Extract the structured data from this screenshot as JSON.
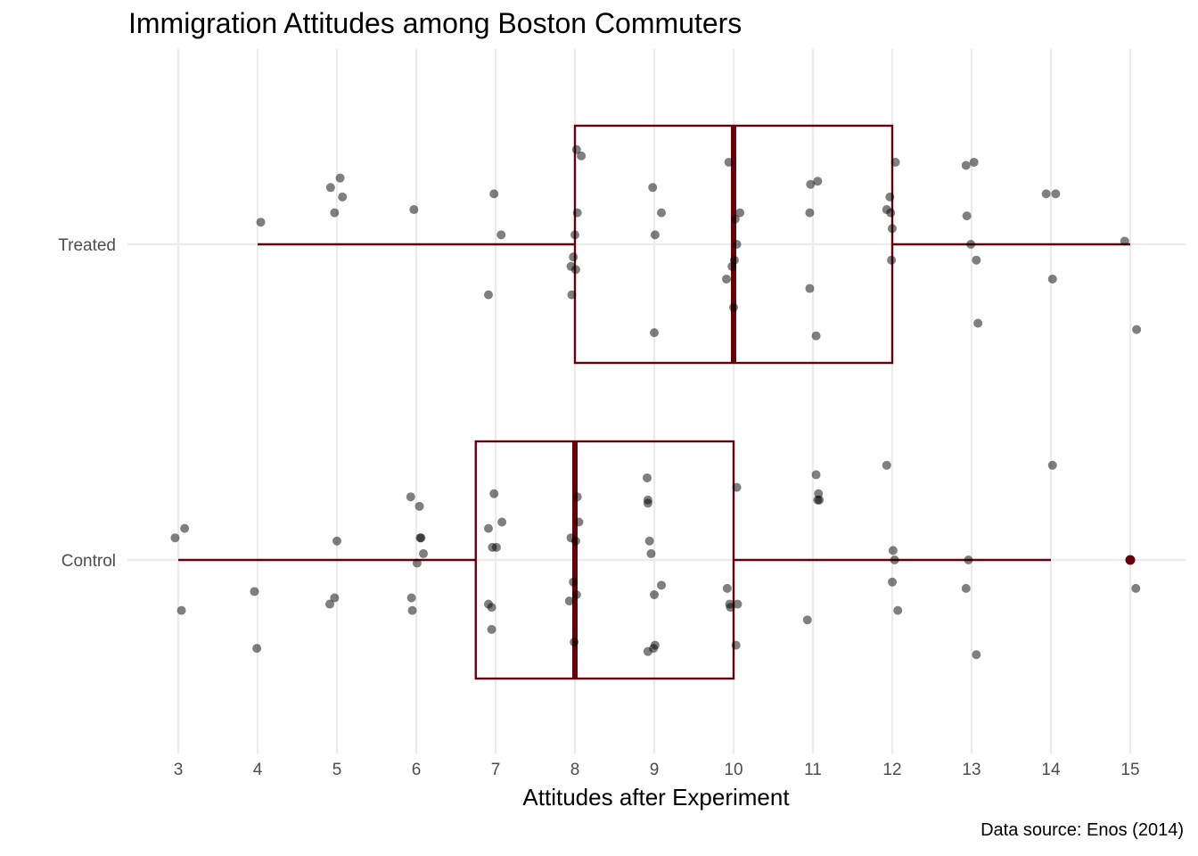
{
  "chart_data": {
    "type": "boxplot",
    "title": "Immigration Attitudes among Boston Commuters",
    "caption": "Data source: Enos (2014)",
    "xlabel": "Attitudes after Experiment",
    "ylabel": "",
    "xlim": [
      2.85,
      15.7
    ],
    "x_ticks": [
      3,
      4,
      5,
      6,
      7,
      8,
      9,
      10,
      11,
      12,
      13,
      14,
      15
    ],
    "categories": [
      "Control",
      "Treated"
    ],
    "grid": true,
    "colors": {
      "box": "#67000d",
      "point": "#000000",
      "grid": "#ebebeb"
    },
    "series": [
      {
        "name": "Treated",
        "box": {
          "min": 4,
          "q1": 8,
          "median": 10,
          "q3": 12,
          "max": 15
        },
        "outliers": [],
        "points": [
          [
            4.04,
            0.07
          ],
          [
            4.92,
            0.18
          ],
          [
            4.97,
            0.1
          ],
          [
            5.04,
            0.21
          ],
          [
            5.07,
            0.15
          ],
          [
            5.97,
            0.11
          ],
          [
            6.91,
            -0.16
          ],
          [
            6.98,
            0.16
          ],
          [
            7.07,
            0.03
          ],
          [
            7.95,
            -0.07
          ],
          [
            7.96,
            -0.16
          ],
          [
            7.98,
            -0.04
          ],
          [
            8.0,
            0.03
          ],
          [
            8.01,
            -0.08
          ],
          [
            8.02,
            0.3
          ],
          [
            8.03,
            0.1
          ],
          [
            8.08,
            0.28
          ],
          [
            8.98,
            0.18
          ],
          [
            9.0,
            -0.28
          ],
          [
            9.01,
            0.03
          ],
          [
            9.09,
            0.1
          ],
          [
            9.91,
            -0.11
          ],
          [
            9.94,
            0.26
          ],
          [
            9.98,
            -0.07
          ],
          [
            10.0,
            -0.2
          ],
          [
            10.01,
            -0.05
          ],
          [
            10.02,
            0.08
          ],
          [
            10.04,
            0.0
          ],
          [
            10.08,
            0.1
          ],
          [
            10.96,
            0.1
          ],
          [
            10.96,
            -0.14
          ],
          [
            10.97,
            0.19
          ],
          [
            11.04,
            -0.29
          ],
          [
            11.06,
            0.2
          ],
          [
            11.93,
            0.11
          ],
          [
            11.97,
            0.15
          ],
          [
            11.98,
            0.1
          ],
          [
            11.99,
            -0.05
          ],
          [
            12.0,
            0.05
          ],
          [
            12.04,
            0.26
          ],
          [
            12.93,
            0.25
          ],
          [
            12.94,
            0.09
          ],
          [
            12.99,
            0.0
          ],
          [
            13.03,
            0.26
          ],
          [
            13.06,
            -0.05
          ],
          [
            13.08,
            -0.25
          ],
          [
            13.94,
            0.16
          ],
          [
            14.02,
            -0.11
          ],
          [
            14.06,
            0.16
          ],
          [
            14.93,
            0.01
          ],
          [
            15.08,
            -0.27
          ]
        ]
      },
      {
        "name": "Control",
        "box": {
          "min": 3,
          "q1": 6.75,
          "median": 8,
          "q3": 10,
          "max": 14
        },
        "outliers": [
          15
        ],
        "points": [
          [
            2.96,
            0.07
          ],
          [
            3.04,
            -0.16
          ],
          [
            3.08,
            0.1
          ],
          [
            3.96,
            -0.1
          ],
          [
            3.99,
            -0.28
          ],
          [
            4.91,
            -0.14
          ],
          [
            4.97,
            -0.12
          ],
          [
            5.0,
            0.06
          ],
          [
            5.93,
            0.2
          ],
          [
            5.94,
            -0.12
          ],
          [
            5.95,
            -0.16
          ],
          [
            6.01,
            -0.01
          ],
          [
            6.04,
            0.17
          ],
          [
            6.05,
            0.07
          ],
          [
            6.06,
            0.07
          ],
          [
            6.09,
            0.02
          ],
          [
            6.91,
            0.1
          ],
          [
            6.91,
            -0.14
          ],
          [
            6.95,
            -0.15
          ],
          [
            6.95,
            -0.22
          ],
          [
            6.96,
            0.04
          ],
          [
            6.98,
            0.21
          ],
          [
            7.01,
            0.04
          ],
          [
            7.08,
            0.12
          ],
          [
            7.93,
            -0.13
          ],
          [
            7.95,
            0.07
          ],
          [
            7.98,
            -0.07
          ],
          [
            7.99,
            -0.26
          ],
          [
            8.01,
            0.06
          ],
          [
            8.02,
            -0.11
          ],
          [
            8.03,
            0.2
          ],
          [
            8.05,
            0.12
          ],
          [
            8.91,
            0.26
          ],
          [
            8.92,
            0.19
          ],
          [
            8.92,
            0.18
          ],
          [
            8.92,
            -0.29
          ],
          [
            8.94,
            0.06
          ],
          [
            8.96,
            0.02
          ],
          [
            8.99,
            -0.28
          ],
          [
            9.0,
            -0.11
          ],
          [
            9.01,
            -0.27
          ],
          [
            9.09,
            -0.08
          ],
          [
            9.92,
            -0.09
          ],
          [
            9.95,
            -0.14
          ],
          [
            9.96,
            -0.15
          ],
          [
            10.03,
            -0.27
          ],
          [
            10.04,
            0.23
          ],
          [
            10.05,
            -0.14
          ],
          [
            10.93,
            -0.19
          ],
          [
            11.04,
            0.27
          ],
          [
            11.06,
            0.19
          ],
          [
            11.07,
            0.21
          ],
          [
            11.08,
            0.19
          ],
          [
            11.93,
            0.3
          ],
          [
            12.0,
            -0.07
          ],
          [
            12.01,
            0.03
          ],
          [
            12.03,
            0.0
          ],
          [
            12.07,
            -0.16
          ],
          [
            12.93,
            -0.09
          ],
          [
            12.96,
            0.0
          ],
          [
            13.06,
            -0.3
          ],
          [
            14.02,
            0.3
          ],
          [
            15.07,
            -0.09
          ]
        ]
      }
    ]
  }
}
